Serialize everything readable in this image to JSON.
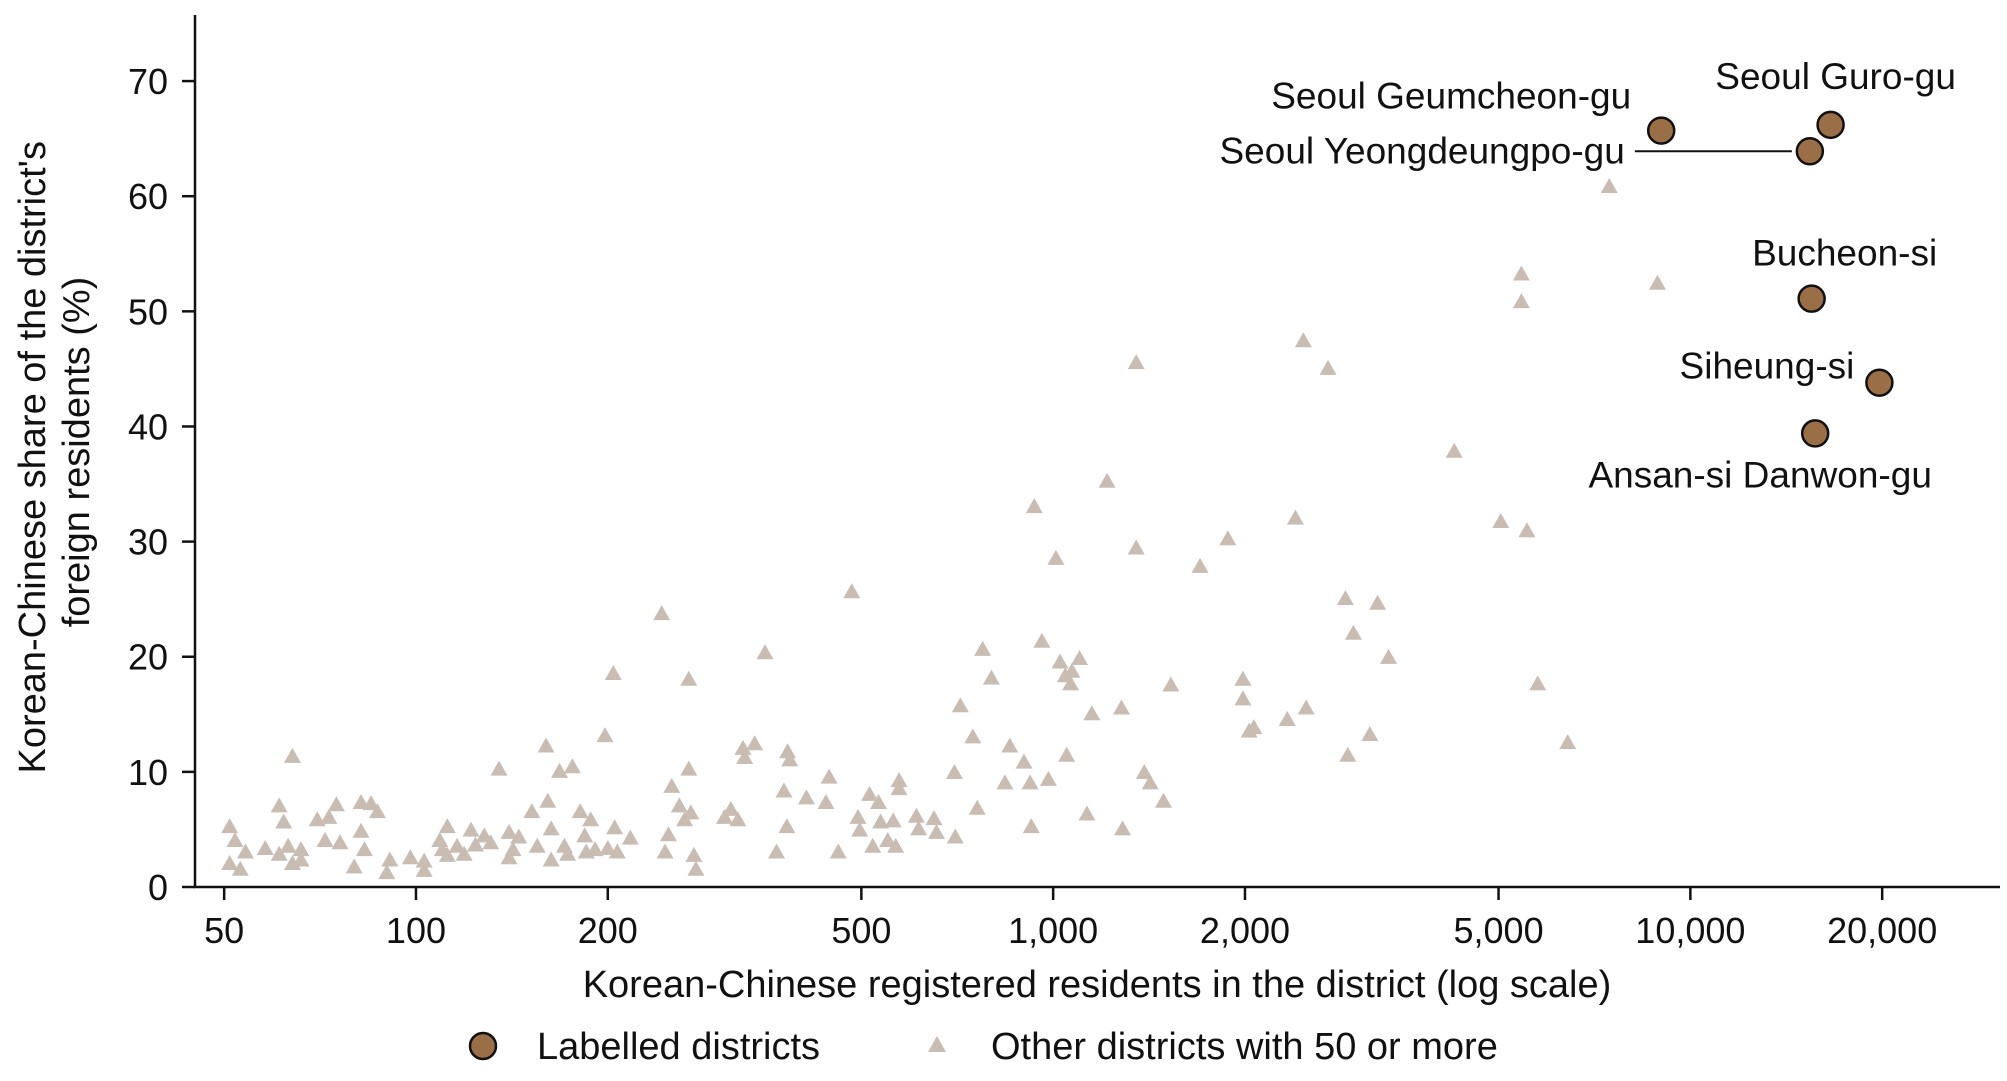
{
  "chart_data": {
    "type": "scatter",
    "xscale": "log",
    "xlim": [
      45,
      29000
    ],
    "ylim": [
      0,
      76
    ],
    "xlabel": "Korean-Chinese registered residents in the district (log scale)",
    "ylabel_lines": [
      "Korean-Chinese share of the district's",
      "foreign residents (%)"
    ],
    "x_ticks": [
      {
        "value": 50,
        "label": "50"
      },
      {
        "value": 100,
        "label": "100"
      },
      {
        "value": 200,
        "label": "200"
      },
      {
        "value": 500,
        "label": "500"
      },
      {
        "value": 1000,
        "label": "1,000"
      },
      {
        "value": 2000,
        "label": "2,000"
      },
      {
        "value": 5000,
        "label": "5,000"
      },
      {
        "value": 10000,
        "label": "10,000"
      },
      {
        "value": 20000,
        "label": "20,000"
      }
    ],
    "y_ticks": [
      {
        "value": 0,
        "label": "0"
      },
      {
        "value": 10,
        "label": "10"
      },
      {
        "value": 20,
        "label": "20"
      },
      {
        "value": 30,
        "label": "30"
      },
      {
        "value": 40,
        "label": "40"
      },
      {
        "value": 50,
        "label": "50"
      },
      {
        "value": 60,
        "label": "60"
      },
      {
        "value": 70,
        "label": "70"
      }
    ],
    "colors": {
      "labelled": "#9a6e46",
      "other": "#c9bdb3",
      "axis": "#111111"
    },
    "legend": {
      "placement": "bottom",
      "labelled": "Labelled districts",
      "other": "Other districts with 50 or more"
    },
    "series": [
      {
        "name": "Labelled districts",
        "marker": "circle",
        "points": [
          {
            "x": 16600,
            "y": 66.2,
            "label": "Seoul Guro-gu",
            "label_anchor": "above-right"
          },
          {
            "x": 9000,
            "y": 65.7,
            "label": "Seoul Geumcheon-gu",
            "label_anchor": "above-left"
          },
          {
            "x": 15400,
            "y": 63.9,
            "label": "Seoul Yeongdeungpo-gu",
            "label_anchor": "left-line"
          },
          {
            "x": 15500,
            "y": 51.1,
            "label": "Bucheon-si",
            "label_anchor": "above"
          },
          {
            "x": 19800,
            "y": 43.8,
            "label": "Siheung-si",
            "label_anchor": "left"
          },
          {
            "x": 15700,
            "y": 39.4,
            "label": "Ansan-si Danwon-gu",
            "label_anchor": "below"
          }
        ]
      },
      {
        "name": "Other districts with 50 or more",
        "marker": "triangle",
        "points": [
          {
            "x": 51,
            "y": 5.2
          },
          {
            "x": 51,
            "y": 2.0
          },
          {
            "x": 52,
            "y": 4.0
          },
          {
            "x": 53,
            "y": 1.5
          },
          {
            "x": 54,
            "y": 3.0
          },
          {
            "x": 58,
            "y": 3.3
          },
          {
            "x": 61,
            "y": 7.0
          },
          {
            "x": 61,
            "y": 2.8
          },
          {
            "x": 62,
            "y": 5.6
          },
          {
            "x": 63,
            "y": 3.5
          },
          {
            "x": 64,
            "y": 11.3
          },
          {
            "x": 64,
            "y": 2.0
          },
          {
            "x": 66,
            "y": 3.2
          },
          {
            "x": 66,
            "y": 2.3
          },
          {
            "x": 70,
            "y": 5.8
          },
          {
            "x": 72,
            "y": 4.0
          },
          {
            "x": 73,
            "y": 6.0
          },
          {
            "x": 75,
            "y": 7.1
          },
          {
            "x": 76,
            "y": 3.8
          },
          {
            "x": 80,
            "y": 1.7
          },
          {
            "x": 82,
            "y": 7.3
          },
          {
            "x": 82,
            "y": 4.8
          },
          {
            "x": 83,
            "y": 3.2
          },
          {
            "x": 85,
            "y": 7.2
          },
          {
            "x": 87,
            "y": 6.5
          },
          {
            "x": 90,
            "y": 1.2
          },
          {
            "x": 91,
            "y": 2.3
          },
          {
            "x": 98,
            "y": 2.5
          },
          {
            "x": 103,
            "y": 2.2
          },
          {
            "x": 103,
            "y": 1.4
          },
          {
            "x": 109,
            "y": 4.0
          },
          {
            "x": 110,
            "y": 3.2
          },
          {
            "x": 112,
            "y": 5.2
          },
          {
            "x": 112,
            "y": 2.7
          },
          {
            "x": 116,
            "y": 3.5
          },
          {
            "x": 119,
            "y": 2.8
          },
          {
            "x": 122,
            "y": 4.9
          },
          {
            "x": 124,
            "y": 3.6
          },
          {
            "x": 128,
            "y": 4.4
          },
          {
            "x": 131,
            "y": 3.8
          },
          {
            "x": 135,
            "y": 10.2
          },
          {
            "x": 140,
            "y": 4.7
          },
          {
            "x": 140,
            "y": 2.5
          },
          {
            "x": 142,
            "y": 3.2
          },
          {
            "x": 145,
            "y": 4.3
          },
          {
            "x": 152,
            "y": 6.5
          },
          {
            "x": 155,
            "y": 3.5
          },
          {
            "x": 160,
            "y": 12.2
          },
          {
            "x": 161,
            "y": 7.4
          },
          {
            "x": 163,
            "y": 5.0
          },
          {
            "x": 163,
            "y": 2.3
          },
          {
            "x": 168,
            "y": 10.0
          },
          {
            "x": 171,
            "y": 3.5
          },
          {
            "x": 173,
            "y": 2.8
          },
          {
            "x": 176,
            "y": 10.4
          },
          {
            "x": 181,
            "y": 6.5
          },
          {
            "x": 184,
            "y": 4.4
          },
          {
            "x": 185,
            "y": 3.0
          },
          {
            "x": 188,
            "y": 5.8
          },
          {
            "x": 191,
            "y": 3.2
          },
          {
            "x": 198,
            "y": 13.1
          },
          {
            "x": 200,
            "y": 3.3
          },
          {
            "x": 204,
            "y": 18.5
          },
          {
            "x": 205,
            "y": 5.1
          },
          {
            "x": 207,
            "y": 3.0
          },
          {
            "x": 217,
            "y": 4.2
          },
          {
            "x": 243,
            "y": 23.7
          },
          {
            "x": 246,
            "y": 3.0
          },
          {
            "x": 249,
            "y": 4.5
          },
          {
            "x": 252,
            "y": 8.7
          },
          {
            "x": 259,
            "y": 7.0
          },
          {
            "x": 264,
            "y": 5.8
          },
          {
            "x": 268,
            "y": 10.2
          },
          {
            "x": 268,
            "y": 18.0
          },
          {
            "x": 270,
            "y": 6.4
          },
          {
            "x": 273,
            "y": 2.7
          },
          {
            "x": 275,
            "y": 1.5
          },
          {
            "x": 305,
            "y": 6.0
          },
          {
            "x": 312,
            "y": 6.7
          },
          {
            "x": 320,
            "y": 5.8
          },
          {
            "x": 326,
            "y": 12.0
          },
          {
            "x": 328,
            "y": 11.2
          },
          {
            "x": 340,
            "y": 12.4
          },
          {
            "x": 353,
            "y": 20.3
          },
          {
            "x": 368,
            "y": 3.0
          },
          {
            "x": 378,
            "y": 8.3
          },
          {
            "x": 383,
            "y": 11.7
          },
          {
            "x": 386,
            "y": 11.0
          },
          {
            "x": 382,
            "y": 5.2
          },
          {
            "x": 410,
            "y": 7.7
          },
          {
            "x": 440,
            "y": 7.3
          },
          {
            "x": 445,
            "y": 9.5
          },
          {
            "x": 460,
            "y": 3.0
          },
          {
            "x": 483,
            "y": 25.6
          },
          {
            "x": 494,
            "y": 6.0
          },
          {
            "x": 497,
            "y": 4.9
          },
          {
            "x": 515,
            "y": 8.0
          },
          {
            "x": 521,
            "y": 3.5
          },
          {
            "x": 532,
            "y": 7.3
          },
          {
            "x": 536,
            "y": 5.6
          },
          {
            "x": 550,
            "y": 4.0
          },
          {
            "x": 561,
            "y": 5.7
          },
          {
            "x": 566,
            "y": 3.5
          },
          {
            "x": 573,
            "y": 9.2
          },
          {
            "x": 573,
            "y": 8.5
          },
          {
            "x": 610,
            "y": 6.1
          },
          {
            "x": 615,
            "y": 5.0
          },
          {
            "x": 650,
            "y": 5.9
          },
          {
            "x": 656,
            "y": 4.7
          },
          {
            "x": 700,
            "y": 9.9
          },
          {
            "x": 702,
            "y": 4.3
          },
          {
            "x": 715,
            "y": 15.7
          },
          {
            "x": 748,
            "y": 13.0
          },
          {
            "x": 760,
            "y": 6.8
          },
          {
            "x": 775,
            "y": 20.6
          },
          {
            "x": 800,
            "y": 18.1
          },
          {
            "x": 840,
            "y": 9.0
          },
          {
            "x": 855,
            "y": 12.2
          },
          {
            "x": 900,
            "y": 10.8
          },
          {
            "x": 920,
            "y": 9.0
          },
          {
            "x": 924,
            "y": 5.2
          },
          {
            "x": 934,
            "y": 33.0
          },
          {
            "x": 960,
            "y": 21.3
          },
          {
            "x": 983,
            "y": 9.3
          },
          {
            "x": 1010,
            "y": 28.5
          },
          {
            "x": 1025,
            "y": 19.5
          },
          {
            "x": 1045,
            "y": 18.3
          },
          {
            "x": 1050,
            "y": 11.4
          },
          {
            "x": 1065,
            "y": 17.6
          },
          {
            "x": 1070,
            "y": 18.7
          },
          {
            "x": 1100,
            "y": 19.8
          },
          {
            "x": 1130,
            "y": 6.3
          },
          {
            "x": 1150,
            "y": 15.0
          },
          {
            "x": 1215,
            "y": 35.2
          },
          {
            "x": 1280,
            "y": 15.5
          },
          {
            "x": 1285,
            "y": 5.0
          },
          {
            "x": 1350,
            "y": 29.4
          },
          {
            "x": 1350,
            "y": 45.5
          },
          {
            "x": 1390,
            "y": 9.9
          },
          {
            "x": 1420,
            "y": 9.0
          },
          {
            "x": 1490,
            "y": 7.4
          },
          {
            "x": 1530,
            "y": 17.5
          },
          {
            "x": 1700,
            "y": 27.8
          },
          {
            "x": 1880,
            "y": 30.2
          },
          {
            "x": 1985,
            "y": 18.0
          },
          {
            "x": 1985,
            "y": 16.3
          },
          {
            "x": 2030,
            "y": 13.5
          },
          {
            "x": 2065,
            "y": 13.8
          },
          {
            "x": 2330,
            "y": 14.5
          },
          {
            "x": 2400,
            "y": 32.0
          },
          {
            "x": 2470,
            "y": 47.4
          },
          {
            "x": 2495,
            "y": 15.5
          },
          {
            "x": 2700,
            "y": 45.0
          },
          {
            "x": 2875,
            "y": 25.0
          },
          {
            "x": 2900,
            "y": 11.4
          },
          {
            "x": 2960,
            "y": 22.0
          },
          {
            "x": 3140,
            "y": 13.2
          },
          {
            "x": 3230,
            "y": 24.6
          },
          {
            "x": 3360,
            "y": 19.9
          },
          {
            "x": 4260,
            "y": 37.8
          },
          {
            "x": 5040,
            "y": 31.7
          },
          {
            "x": 5430,
            "y": 53.2
          },
          {
            "x": 5430,
            "y": 50.8
          },
          {
            "x": 5540,
            "y": 30.9
          },
          {
            "x": 5760,
            "y": 17.6
          },
          {
            "x": 6420,
            "y": 12.5
          },
          {
            "x": 7460,
            "y": 60.8
          },
          {
            "x": 8880,
            "y": 52.4
          }
        ]
      }
    ]
  }
}
